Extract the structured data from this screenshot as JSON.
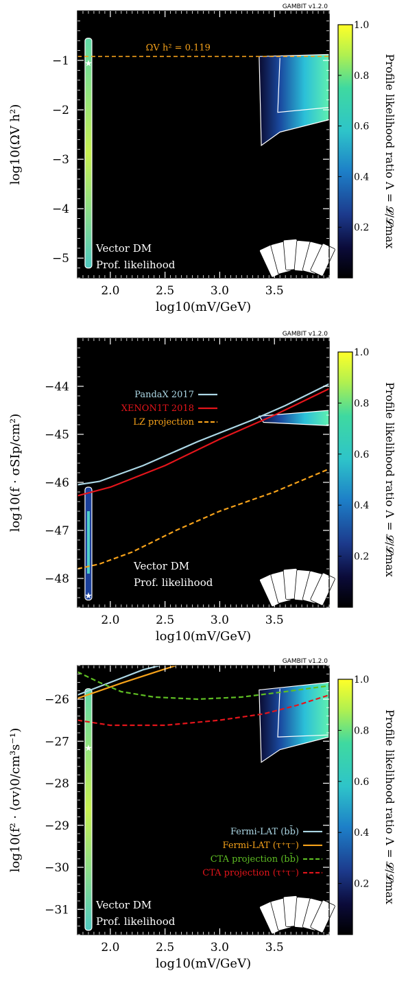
{
  "version": "GAMBIT v1.2.0",
  "colorbar": {
    "label": "Profile likelihood ratio Λ = 𝓛/𝓛max",
    "ticks": [
      "0.2",
      "0.4",
      "0.6",
      "0.8",
      "1.0"
    ],
    "tick_values": [
      0.2,
      0.4,
      0.6,
      0.8,
      1.0
    ]
  },
  "colors": {
    "pandax": "#add8e6",
    "xenon": "#e4151b",
    "lz": "#f6a21a",
    "fermi_bb": "#add8e6",
    "fermi_tt": "#f6a21a",
    "cta_bb": "#5fbf23",
    "cta_tt": "#e4151b",
    "relic": "#f6a21a"
  },
  "chart_data": [
    {
      "type": "heatmap",
      "xlabel": "log10(mV/GeV)",
      "ylabel": "log10(ΩV h²)",
      "xlim": [
        1.7,
        4.0
      ],
      "ylim": [
        -5.4,
        0.0
      ],
      "xticks": [
        2.0,
        2.5,
        3.0,
        3.5
      ],
      "yticks": [
        -5,
        -4,
        -3,
        -2,
        -1
      ],
      "xtick_labels": [
        "2.0",
        "2.5",
        "3.0",
        "3.5"
      ],
      "ytick_labels": [
        "−5",
        "−4",
        "−3",
        "−2",
        "−1"
      ],
      "annotations": [
        "Vector DM",
        "Prof. likelihood"
      ],
      "relic_line": {
        "label": "ΩV h² = 0.119",
        "y": -0.92
      },
      "series": [],
      "best_fit": [
        {
          "x": 1.8,
          "y": -1.05
        }
      ]
    },
    {
      "type": "heatmap",
      "xlabel": "log10(mV/GeV)",
      "ylabel": "log10(f · σSIp/cm²)",
      "xlim": [
        1.7,
        4.0
      ],
      "ylim": [
        -48.6,
        -43.0
      ],
      "xticks": [
        2.0,
        2.5,
        3.0,
        3.5
      ],
      "yticks": [
        -48,
        -47,
        -46,
        -45,
        -44
      ],
      "xtick_labels": [
        "2.0",
        "2.5",
        "3.0",
        "3.5"
      ],
      "ytick_labels": [
        "−48",
        "−47",
        "−46",
        "−45",
        "−44"
      ],
      "annotations": [
        "Vector DM",
        "Prof. likelihood"
      ],
      "series": [
        {
          "name": "PandaX 2017",
          "color_key": "pandax",
          "dash": false,
          "x": [
            1.7,
            1.9,
            2.3,
            2.8,
            3.3,
            3.6,
            4.0
          ],
          "y": [
            -46.05,
            -45.98,
            -45.65,
            -45.15,
            -44.7,
            -44.4,
            -43.95
          ]
        },
        {
          "name": "XENON1T 2018",
          "color_key": "xenon",
          "dash": false,
          "x": [
            1.7,
            2.0,
            2.5,
            3.0,
            3.5,
            4.0
          ],
          "y": [
            -46.28,
            -46.1,
            -45.65,
            -45.1,
            -44.6,
            -44.05
          ]
        },
        {
          "name": "LZ projection",
          "color_key": "lz",
          "dash": true,
          "x": [
            1.7,
            1.9,
            2.2,
            2.6,
            3.0,
            3.5,
            4.0
          ],
          "y": [
            -47.8,
            -47.7,
            -47.45,
            -47.0,
            -46.6,
            -46.2,
            -45.72
          ]
        }
      ],
      "best_fit": [
        {
          "x": 1.8,
          "y": -48.35
        }
      ]
    },
    {
      "type": "heatmap",
      "xlabel": "log10(mV/GeV)",
      "ylabel": "log10(f² · ⟨σv⟩0/cm³s⁻¹)",
      "xlim": [
        1.7,
        4.0
      ],
      "ylim": [
        -31.6,
        -25.2
      ],
      "xticks": [
        2.0,
        2.5,
        3.0,
        3.5
      ],
      "yticks": [
        -31,
        -30,
        -29,
        -28,
        -27,
        -26
      ],
      "xtick_labels": [
        "2.0",
        "2.5",
        "3.0",
        "3.5"
      ],
      "ytick_labels": [
        "−31",
        "−30",
        "−29",
        "−28",
        "−27",
        "−26"
      ],
      "annotations": [
        "Vector DM",
        "Prof. likelihood"
      ],
      "series": [
        {
          "name": "Fermi-LAT (bb̄)",
          "color_key": "fermi_bb",
          "dash": false,
          "x": [
            1.7,
            1.9,
            2.1,
            2.3,
            2.45
          ],
          "y": [
            -25.9,
            -25.7,
            -25.5,
            -25.3,
            -25.2
          ]
        },
        {
          "name": "Fermi-LAT (τ⁺τ⁻)",
          "color_key": "fermi_tt",
          "dash": false,
          "x": [
            1.7,
            1.9,
            2.1,
            2.3,
            2.5,
            2.6
          ],
          "y": [
            -25.98,
            -25.8,
            -25.62,
            -25.45,
            -25.28,
            -25.2
          ]
        },
        {
          "name": "CTA projection (bb̄)",
          "color_key": "cta_bb",
          "dash": true,
          "x": [
            1.7,
            1.9,
            2.1,
            2.4,
            2.8,
            3.2,
            3.6,
            4.0
          ],
          "y": [
            -25.35,
            -25.6,
            -25.82,
            -25.95,
            -26.0,
            -25.95,
            -25.82,
            -25.68
          ]
        },
        {
          "name": "CTA projection (τ⁺τ⁻)",
          "color_key": "cta_tt",
          "dash": true,
          "x": [
            1.7,
            2.0,
            2.5,
            3.0,
            3.4,
            3.7,
            4.0
          ],
          "y": [
            -26.5,
            -26.62,
            -26.62,
            -26.5,
            -26.35,
            -26.15,
            -25.9
          ]
        }
      ],
      "best_fit": [
        {
          "x": 1.8,
          "y": -27.15
        }
      ]
    }
  ]
}
